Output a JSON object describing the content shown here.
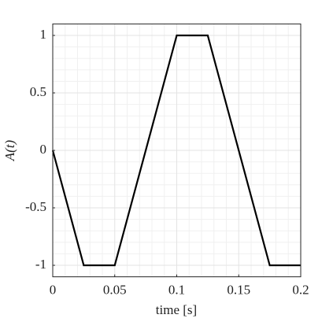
{
  "chart_data": {
    "type": "line",
    "xlabel": "time [s]",
    "ylabel": "A(t)",
    "x": [
      0,
      0.025,
      0.05,
      0.1,
      0.125,
      0.175,
      0.2
    ],
    "series": [
      {
        "color": "#000000",
        "values": [
          0,
          -1,
          -1,
          1,
          1,
          -1,
          -1
        ]
      }
    ],
    "xlim": [
      0,
      0.2
    ],
    "ylim": [
      -1.1,
      1.1
    ],
    "xticks": [
      0,
      0.05,
      0.1,
      0.15,
      0.2
    ],
    "yticks": [
      -1,
      -0.5,
      0,
      0.5,
      1
    ],
    "grid": true,
    "minor_grid": true
  }
}
